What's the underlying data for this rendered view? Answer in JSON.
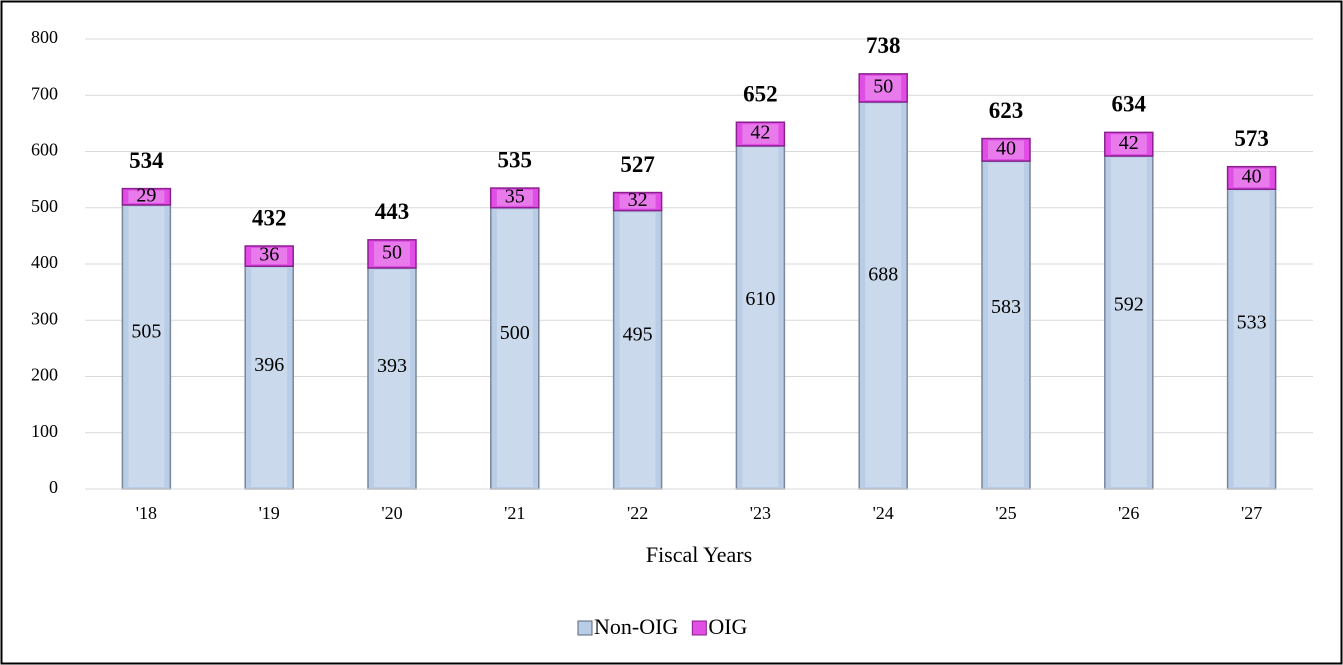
{
  "chart_data": {
    "type": "stacked_bar",
    "x_label": "Fiscal Years",
    "categories": [
      "'18",
      "'19",
      "'20",
      "'21",
      "'22",
      "'23",
      "'24",
      "'25",
      "'26",
      "'27"
    ],
    "series": [
      {
        "name": "Non-OIG",
        "color": "#b9cde6",
        "values": [
          505,
          396,
          393,
          500,
          495,
          610,
          688,
          583,
          592,
          533
        ]
      },
      {
        "name": "OIG",
        "color": "#e14ee6",
        "values": [
          29,
          36,
          50,
          35,
          32,
          42,
          50,
          40,
          42,
          40
        ]
      }
    ],
    "totals": [
      534,
      432,
      443,
      535,
      527,
      652,
      738,
      623,
      634,
      573
    ],
    "ylim": [
      0,
      800
    ],
    "yticks": [
      0,
      100,
      200,
      300,
      400,
      500,
      600,
      700,
      800
    ],
    "grid": true,
    "legend": "bottom"
  }
}
